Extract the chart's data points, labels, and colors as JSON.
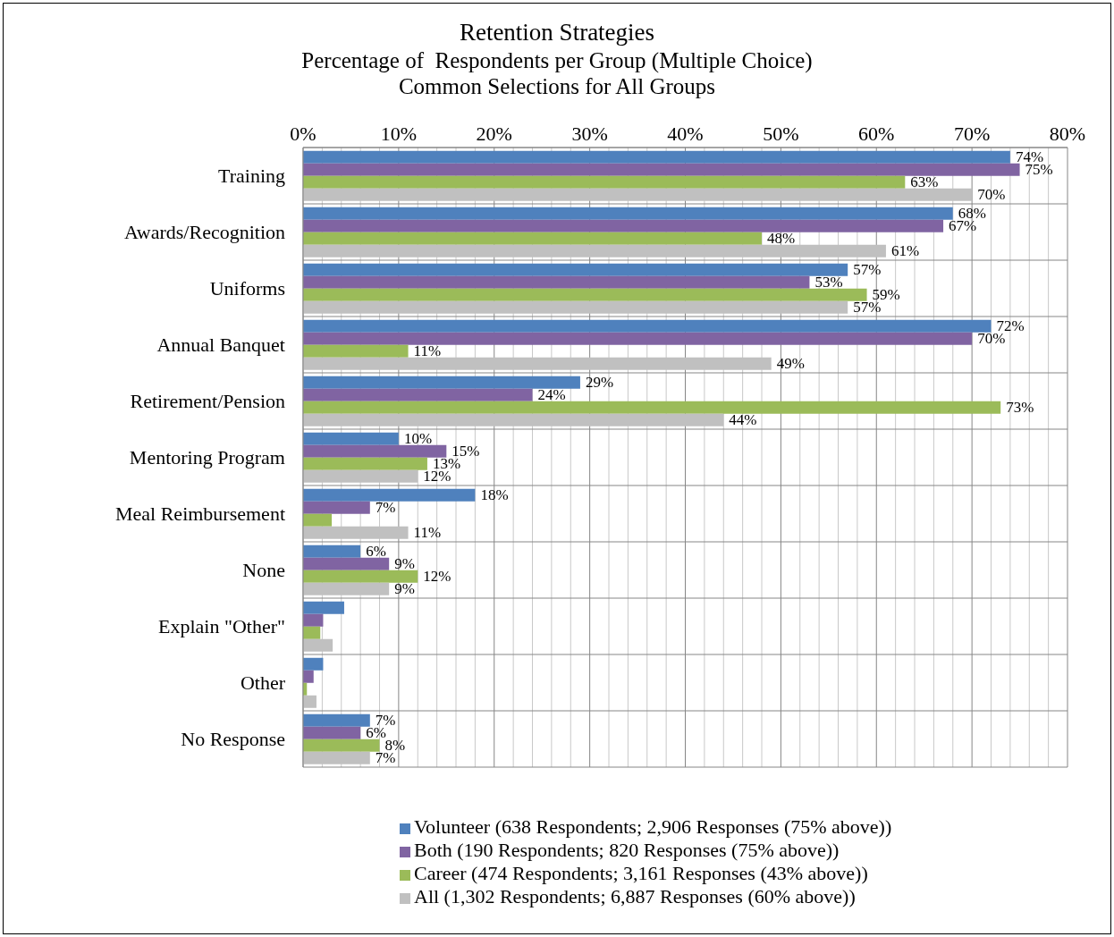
{
  "chart_data": {
    "type": "bar",
    "orientation": "horizontal",
    "title": "Retention Strategies",
    "subtitle": "Percentage of  Respondents per Group (Multiple Choice)\nCommon Selections for All Groups",
    "categories": [
      "Training",
      "Awards/Recognition",
      "Uniforms",
      "Annual Banquet",
      "Retirement/Pension",
      "Mentoring Program",
      "Meal Reimbursement",
      "None",
      "Explain \"Other\"",
      "Other",
      "No Response"
    ],
    "series": [
      {
        "name": "Volunteer (638 Respondents; 2,906 Responses (75% above))",
        "color": "#4f81bd",
        "values": [
          74,
          68,
          57,
          72,
          29,
          10,
          18,
          6,
          4.3,
          2.1,
          7
        ],
        "value_labels": [
          "74%",
          "68%",
          "57%",
          "72%",
          "29%",
          "10%",
          "18%",
          "6%",
          null,
          null,
          "7%"
        ]
      },
      {
        "name": "Both (190 Respondents; 820 Responses (75% above))",
        "color": "#8064a2",
        "values": [
          75,
          67,
          53,
          70,
          24,
          15,
          7,
          9,
          2.1,
          1.1,
          6
        ],
        "value_labels": [
          "75%",
          "67%",
          "53%",
          "70%",
          "24%",
          "15%",
          "7%",
          "9%",
          null,
          null,
          "6%"
        ]
      },
      {
        "name": "Career (474 Respondents; 3,161 Responses (43% above))",
        "color": "#9bbb59",
        "values": [
          63,
          48,
          59,
          11,
          73,
          13,
          3,
          12,
          1.8,
          0.4,
          8
        ],
        "value_labels": [
          "63%",
          "48%",
          "59%",
          "11%",
          "73%",
          "13%",
          null,
          "12%",
          null,
          null,
          "8%"
        ]
      },
      {
        "name": "All (1,302 Respondents; 6,887 Responses (60% above))",
        "color": "#c0c0c0",
        "values": [
          70,
          61,
          57,
          49,
          44,
          12,
          11,
          9,
          3.1,
          1.4,
          7
        ],
        "value_labels": [
          "70%",
          "61%",
          "57%",
          "49%",
          "44%",
          "12%",
          "11%",
          "9%",
          null,
          null,
          "7%"
        ]
      }
    ],
    "xlim": [
      0,
      80
    ],
    "xticks": [
      {
        "value": 0,
        "label": "0%"
      },
      {
        "value": 2,
        "label": null
      },
      {
        "value": 4,
        "label": null
      },
      {
        "value": 6,
        "label": null
      },
      {
        "value": 8,
        "label": null
      },
      {
        "value": 10,
        "label": "10%"
      },
      {
        "value": 12,
        "label": null
      },
      {
        "value": 14,
        "label": null
      },
      {
        "value": 16,
        "label": null
      },
      {
        "value": 18,
        "label": null
      },
      {
        "value": 20,
        "label": "20%"
      },
      {
        "value": 22,
        "label": null
      },
      {
        "value": 24,
        "label": null
      },
      {
        "value": 26,
        "label": null
      },
      {
        "value": 28,
        "label": null
      },
      {
        "value": 30,
        "label": "30%"
      },
      {
        "value": 32,
        "label": null
      },
      {
        "value": 34,
        "label": null
      },
      {
        "value": 36,
        "label": null
      },
      {
        "value": 38,
        "label": null
      },
      {
        "value": 40,
        "label": "40%"
      },
      {
        "value": 42,
        "label": null
      },
      {
        "value": 44,
        "label": null
      },
      {
        "value": 46,
        "label": null
      },
      {
        "value": 48,
        "label": null
      },
      {
        "value": 50,
        "label": "50%"
      },
      {
        "value": 52,
        "label": null
      },
      {
        "value": 54,
        "label": null
      },
      {
        "value": 56,
        "label": null
      },
      {
        "value": 58,
        "label": null
      },
      {
        "value": 60,
        "label": "60%"
      },
      {
        "value": 62,
        "label": null
      },
      {
        "value": 64,
        "label": null
      },
      {
        "value": 66,
        "label": null
      },
      {
        "value": 68,
        "label": null
      },
      {
        "value": 70,
        "label": "70%"
      },
      {
        "value": 72,
        "label": null
      },
      {
        "value": 74,
        "label": null
      },
      {
        "value": 76,
        "label": null
      },
      {
        "value": 78,
        "label": null
      },
      {
        "value": 80,
        "label": "80%"
      }
    ],
    "grid": true,
    "legend": "bottom"
  }
}
